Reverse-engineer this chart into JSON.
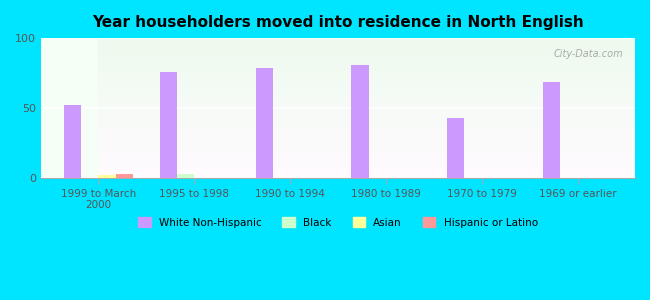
{
  "title": "Year householders moved into residence in North English",
  "categories": [
    "1999 to March\n2000",
    "1995 to 1998",
    "1990 to 1994",
    "1980 to 1989",
    "1970 to 1979",
    "1969 or earlier"
  ],
  "white_non_hispanic": [
    52,
    76,
    79,
    81,
    43,
    69
  ],
  "black": [
    0,
    3,
    0,
    0,
    0,
    0
  ],
  "asian": [
    2,
    0,
    0,
    0,
    0,
    0
  ],
  "hispanic": [
    3,
    0,
    0,
    0,
    0,
    0
  ],
  "white_color": "#cc99ff",
  "black_color": "#ccffcc",
  "asian_color": "#ffff99",
  "hispanic_color": "#ff9999",
  "ylim": [
    0,
    100
  ],
  "yticks": [
    0,
    50,
    100
  ],
  "bg_outer": "#00e5ff",
  "bg_plot_top": "#e8f5e8",
  "bg_plot_bottom": "#f5fff5",
  "watermark": "City-Data.com"
}
